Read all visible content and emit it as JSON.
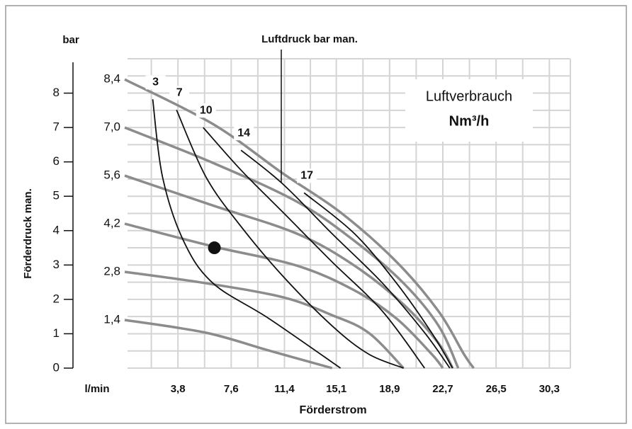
{
  "chart_data": {
    "type": "line",
    "title": "Luftdruck bar man.",
    "ylabel": "Förderdruck man.",
    "yunit": "bar",
    "xunit": "l/min",
    "xlabel": "Förderstrom",
    "legend_title": "Luftverbrauch",
    "legend_unit": "Nm³/h",
    "xlim": [
      0,
      31.8
    ],
    "ylim": [
      0,
      9
    ],
    "xticks": [
      {
        "value": 3.8,
        "label": "3,8"
      },
      {
        "value": 7.6,
        "label": "7,6"
      },
      {
        "value": 11.4,
        "label": "11,4"
      },
      {
        "value": 15.1,
        "label": "15,1"
      },
      {
        "value": 18.9,
        "label": "18,9"
      },
      {
        "value": 22.7,
        "label": "22,7"
      },
      {
        "value": 26.5,
        "label": "26,5"
      },
      {
        "value": 30.3,
        "label": "30,3"
      }
    ],
    "yticks": [
      0,
      1,
      2,
      3,
      4,
      5,
      6,
      7,
      8
    ],
    "grid": true,
    "series": [
      {
        "name": "1,4",
        "color": "#8c8c8c",
        "x": [
          0,
          5.8,
          10.3,
          14.8
        ],
        "values": [
          1.4,
          1.03,
          0.51,
          0
        ]
      },
      {
        "name": "2,8",
        "color": "#8c8c8c",
        "x": [
          0,
          5.8,
          11.3,
          14.8,
          17.4,
          19.9
        ],
        "values": [
          2.8,
          2.47,
          2.06,
          1.54,
          1.03,
          0
        ]
      },
      {
        "name": "4,2",
        "color": "#8c8c8c",
        "x": [
          0,
          6.3,
          12.3,
          16.4,
          19.4,
          21.9,
          22.7
        ],
        "values": [
          4.2,
          3.54,
          2.98,
          2.26,
          1.44,
          0.41,
          0
        ]
      },
      {
        "name": "5,6",
        "color": "#8c8c8c",
        "x": [
          0,
          6.3,
          12.3,
          16.4,
          19.9,
          22.4,
          23.4
        ],
        "values": [
          5.6,
          4.73,
          3.91,
          2.98,
          1.85,
          0.72,
          0
        ]
      },
      {
        "name": "7,0",
        "color": "#8c8c8c",
        "x": [
          0,
          6.3,
          12.3,
          16.4,
          19.9,
          22.4,
          23.8
        ],
        "values": [
          7.0,
          5.97,
          4.84,
          3.7,
          2.47,
          1.23,
          0
        ]
      },
      {
        "name": "8,4",
        "color": "#8c8c8c",
        "x": [
          0,
          6.3,
          11.3,
          15.4,
          19.4,
          22.4,
          24.2,
          24.9
        ],
        "values": [
          8.4,
          7.1,
          5.66,
          4.53,
          3.09,
          1.65,
          0.41,
          0
        ]
      },
      {
        "name": "3",
        "color": "#111111",
        "x": [
          2.0,
          2.7,
          4.2,
          6.3,
          10.3,
          15.4
        ],
        "values": [
          7.82,
          5.56,
          3.7,
          2.47,
          1.44,
          0
        ]
      },
      {
        "name": "7",
        "color": "#111111",
        "x": [
          3.7,
          5.8,
          8.3,
          11.3,
          14.8,
          17.4,
          19.9
        ],
        "values": [
          7.51,
          5.56,
          4.12,
          2.67,
          1.23,
          0.41,
          0
        ]
      },
      {
        "name": "10",
        "color": "#111111",
        "x": [
          5.6,
          8.3,
          11.3,
          14.8,
          18.4,
          21.4
        ],
        "values": [
          7.0,
          5.76,
          4.53,
          3.09,
          1.65,
          0
        ]
      },
      {
        "name": "14",
        "color": "#111111",
        "x": [
          8.3,
          11.3,
          14.8,
          18.4,
          21.4,
          23.2
        ],
        "values": [
          6.34,
          5.35,
          3.91,
          2.47,
          1.03,
          0
        ]
      },
      {
        "name": "17",
        "color": "#111111",
        "x": [
          12.8,
          16.4,
          19.4,
          21.9,
          23.4
        ],
        "values": [
          5.1,
          3.91,
          2.47,
          1.03,
          0
        ]
      }
    ],
    "operating_point": {
      "x": 6.4,
      "y": 3.5
    }
  }
}
